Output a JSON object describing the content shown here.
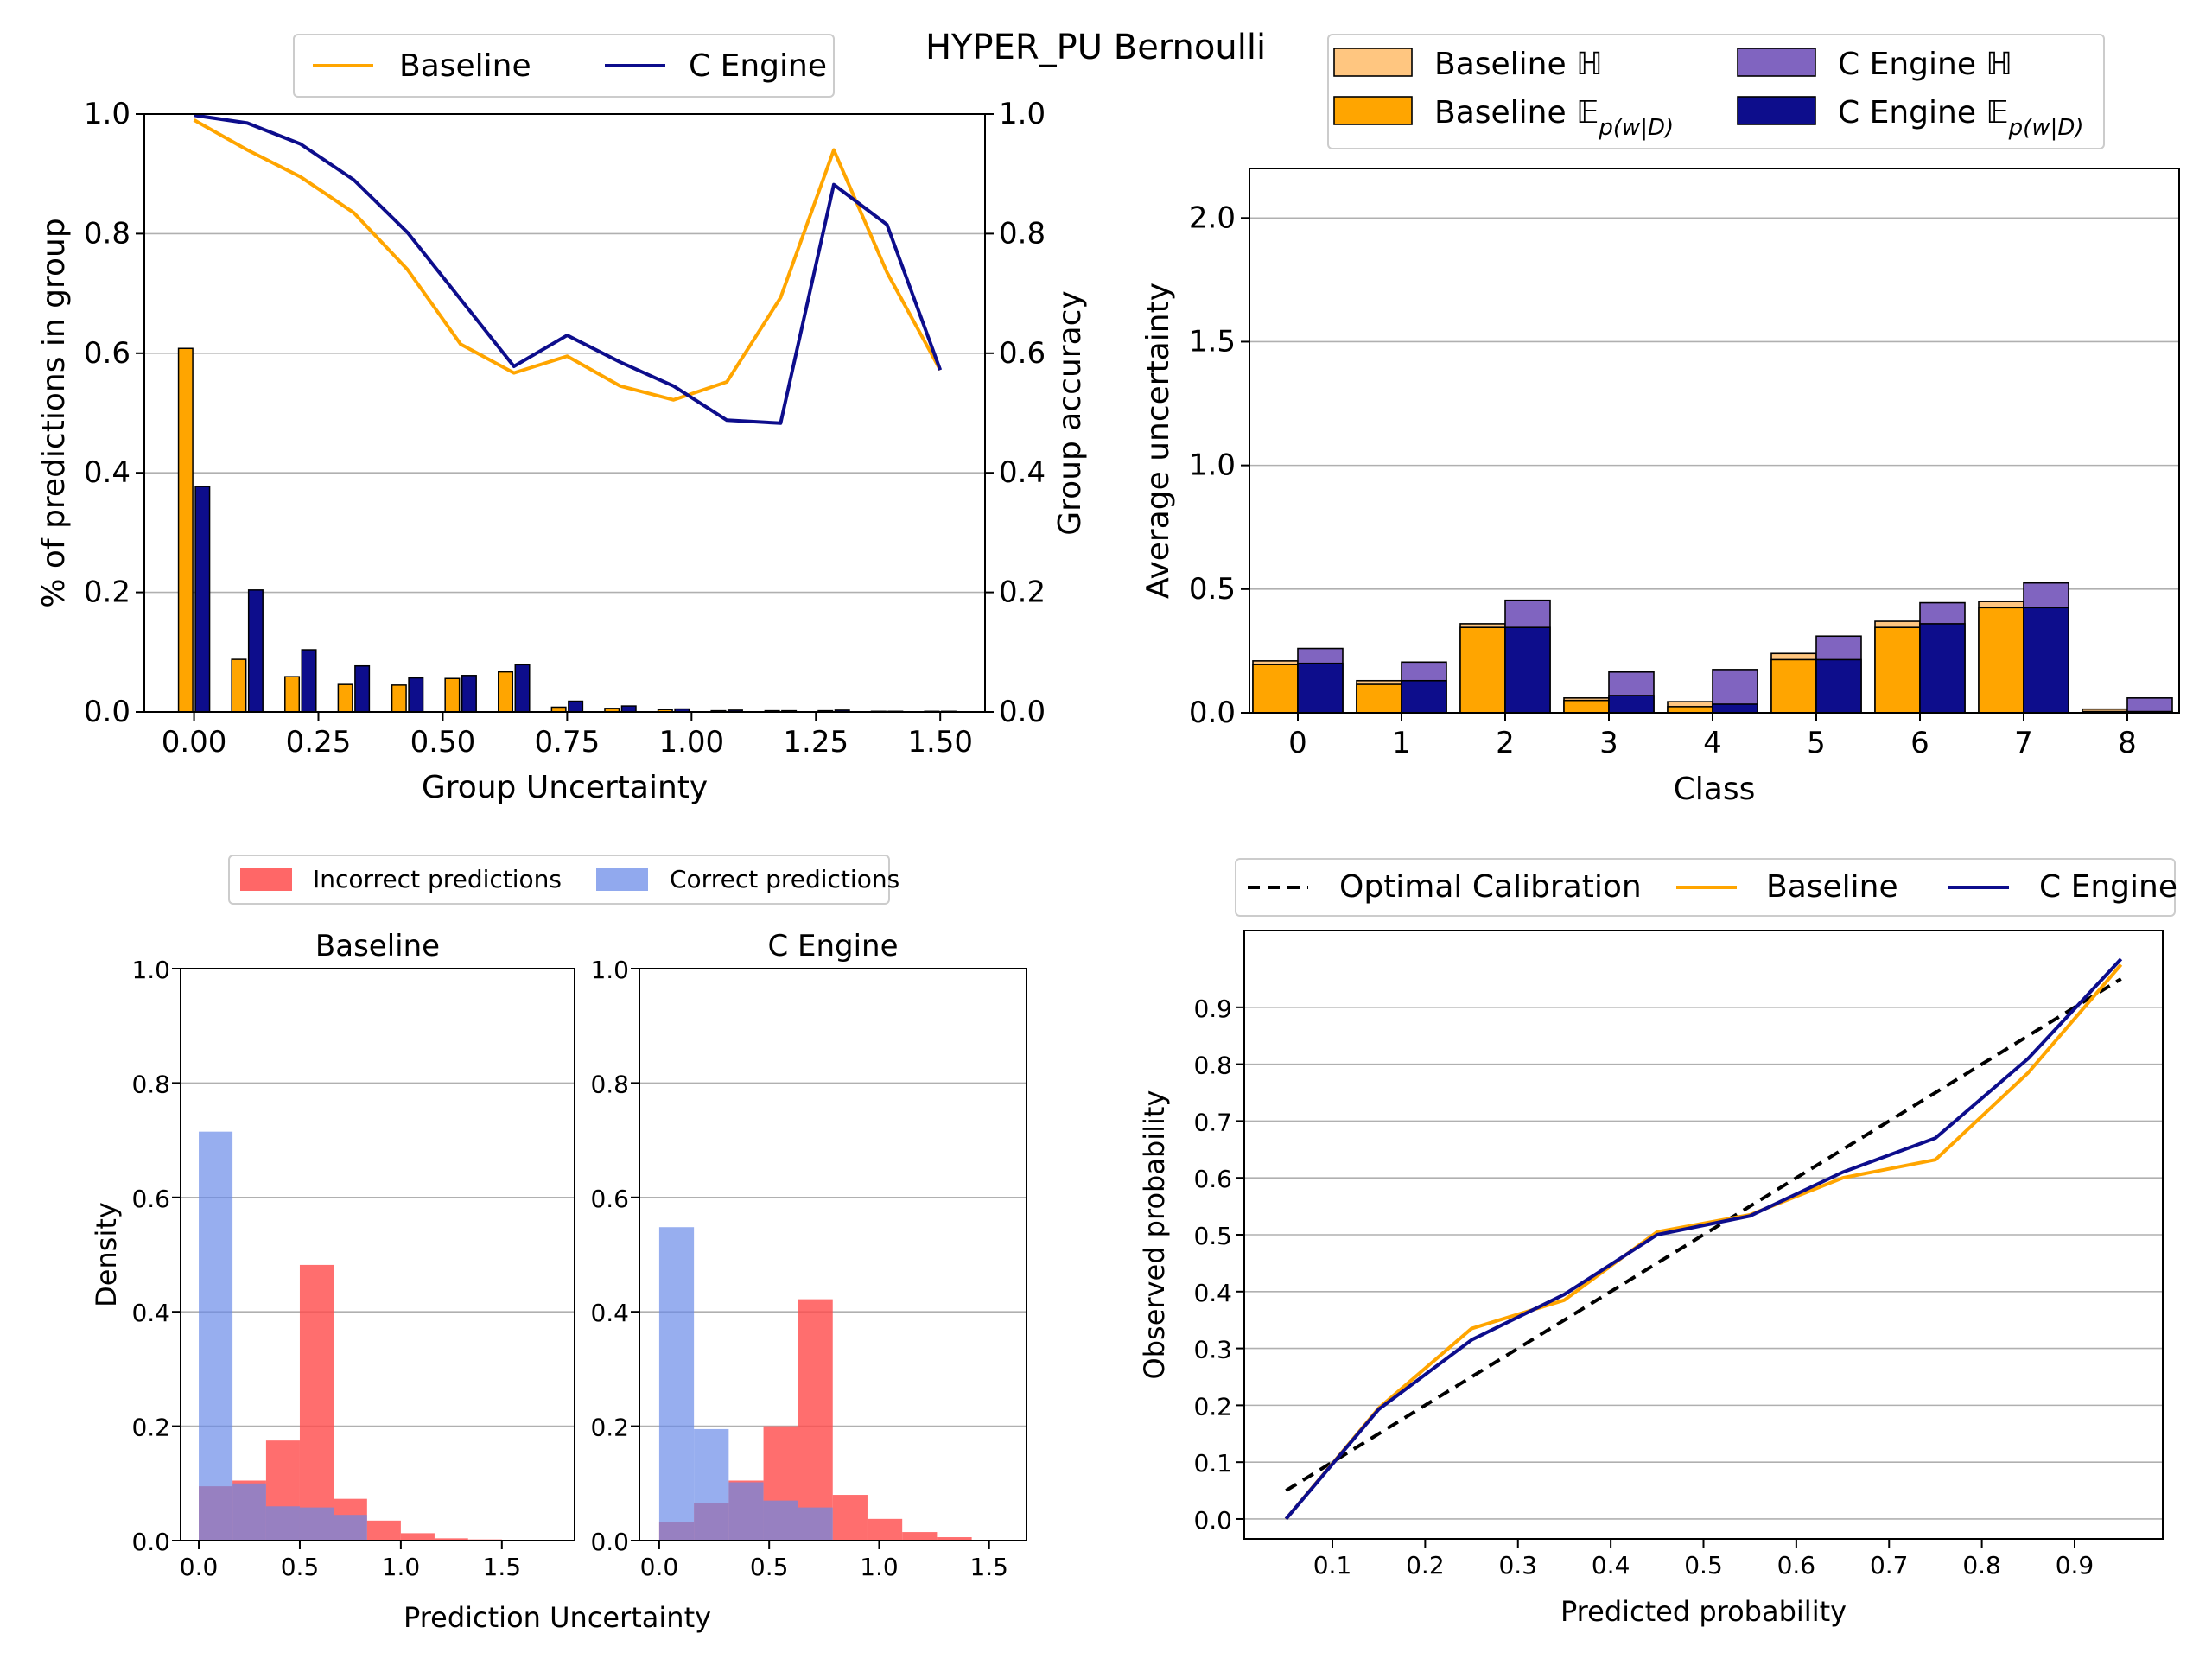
{
  "figure": {
    "title": "HYPER_PU Bernoulli"
  },
  "colors": {
    "baseline": "#ffa500",
    "c_engine": "#0d0d8c",
    "baseline_light": "#ffc680",
    "c_engine_light": "#8064c0",
    "incorrect": "#ff4c4c",
    "correct": "#6688e8",
    "optimal": "#000000",
    "grid": "#b0b0b0"
  },
  "chart_data": [
    {
      "id": "group-uncertainty",
      "type": "bar+line",
      "xlabel": "Group Uncertainty",
      "ylabel": "% of predictions in group",
      "ylabel_right": "Group accuracy",
      "xlim": [
        -0.1,
        1.59
      ],
      "ylim": [
        0,
        1.0
      ],
      "ylim_right": [
        0,
        1.0
      ],
      "xticks": [
        "0.00",
        "0.25",
        "0.50",
        "0.75",
        "1.00",
        "1.25",
        "1.50"
      ],
      "yticks": [
        "0.0",
        "0.2",
        "0.4",
        "0.6",
        "0.8",
        "1.0"
      ],
      "yticks_right": [
        "0.0",
        "0.2",
        "0.4",
        "0.6",
        "0.8",
        "1.0"
      ],
      "legend": {
        "position": "top-left",
        "entries": [
          "Baseline",
          "C Engine"
        ]
      },
      "x": [
        0.0,
        0.107,
        0.214,
        0.321,
        0.429,
        0.536,
        0.643,
        0.75,
        0.857,
        0.964,
        1.071,
        1.179,
        1.286,
        1.393,
        1.5
      ],
      "series": [
        {
          "name": "Baseline",
          "kind": "bar",
          "axis": "left",
          "values": [
            0.608,
            0.088,
            0.059,
            0.046,
            0.045,
            0.056,
            0.067,
            0.008,
            0.006,
            0.004,
            0.002,
            0.002,
            0.002,
            0.001,
            0.001
          ]
        },
        {
          "name": "C Engine",
          "kind": "bar",
          "axis": "left",
          "values": [
            0.377,
            0.204,
            0.104,
            0.077,
            0.057,
            0.061,
            0.079,
            0.018,
            0.01,
            0.005,
            0.003,
            0.002,
            0.003,
            0.001,
            0.001
          ]
        },
        {
          "name": "Baseline",
          "kind": "line",
          "axis": "right",
          "values": [
            0.99,
            0.94,
            0.895,
            0.835,
            0.74,
            0.615,
            0.567,
            0.595,
            0.545,
            0.522,
            0.552,
            0.693,
            0.94,
            0.735,
            0.572
          ]
        },
        {
          "name": "C Engine",
          "kind": "line",
          "axis": "right",
          "values": [
            0.998,
            0.985,
            0.95,
            0.89,
            0.802,
            0.69,
            0.578,
            0.63,
            0.585,
            0.545,
            0.488,
            0.483,
            0.882,
            0.815,
            0.572
          ]
        }
      ]
    },
    {
      "id": "class-uncertainty",
      "type": "bar",
      "xlabel": "Class",
      "ylabel": "Average uncertainty",
      "ylim": [
        0,
        2.2
      ],
      "yticks": [
        "0.0",
        "0.5",
        "1.0",
        "1.5",
        "2.0"
      ],
      "categories": [
        "0",
        "1",
        "2",
        "3",
        "4",
        "5",
        "6",
        "7",
        "8"
      ],
      "legend": {
        "position": "top-right",
        "entries": [
          "Baseline ℍ",
          "C Engine ℍ",
          "Baseline 𝔼",
          "C Engine 𝔼"
        ],
        "subscript": "p(w|D)"
      },
      "series": [
        {
          "name": "Baseline ℍ",
          "values": [
            0.21,
            0.13,
            0.36,
            0.06,
            0.045,
            0.24,
            0.37,
            0.45,
            0.015
          ]
        },
        {
          "name": "Baseline 𝔼",
          "values": [
            0.195,
            0.115,
            0.345,
            0.05,
            0.025,
            0.215,
            0.345,
            0.425,
            0.005
          ]
        },
        {
          "name": "C Engine ℍ",
          "values": [
            0.26,
            0.205,
            0.455,
            0.165,
            0.175,
            0.31,
            0.445,
            0.525,
            0.06
          ]
        },
        {
          "name": "C Engine 𝔼",
          "values": [
            0.2,
            0.13,
            0.345,
            0.07,
            0.035,
            0.215,
            0.36,
            0.425,
            0.005
          ]
        }
      ]
    },
    {
      "id": "hist-baseline",
      "type": "histogram",
      "title": "Baseline",
      "ylabel": "Density",
      "xlim": [
        -0.09,
        1.86
      ],
      "ylim": [
        0,
        1.0
      ],
      "xticks": [
        "0.0",
        "0.5",
        "1.0",
        "1.5"
      ],
      "yticks": [
        "0.0",
        "0.2",
        "0.4",
        "0.6",
        "0.8",
        "1.0"
      ],
      "bin_edges": [
        0.0,
        0.167,
        0.333,
        0.5,
        0.667,
        0.833,
        1.0,
        1.167,
        1.333,
        1.5,
        1.667,
        1.833
      ],
      "series": [
        {
          "name": "Incorrect predictions",
          "values": [
            0.095,
            0.105,
            0.175,
            0.482,
            0.073,
            0.035,
            0.013,
            0.004,
            0.002,
            0.001,
            0.0
          ]
        },
        {
          "name": "Correct predictions",
          "values": [
            0.715,
            0.1,
            0.06,
            0.058,
            0.045,
            0.0,
            0.0,
            0.0,
            0.0,
            0.0,
            0.0
          ]
        }
      ]
    },
    {
      "id": "hist-c-engine",
      "type": "histogram",
      "title": "C Engine",
      "xlabel": "Prediction Uncertainty",
      "xlim": [
        -0.09,
        1.67
      ],
      "ylim": [
        0,
        1.0
      ],
      "xticks": [
        "0.0",
        "0.5",
        "1.0",
        "1.5"
      ],
      "yticks": [
        "0.0",
        "0.2",
        "0.4",
        "0.6",
        "0.8",
        "1.0"
      ],
      "bin_edges": [
        0.0,
        0.158,
        0.316,
        0.474,
        0.632,
        0.789,
        0.947,
        1.105,
        1.263,
        1.421,
        1.579
      ],
      "legend": {
        "position": "top",
        "entries": [
          "Incorrect predictions",
          "Correct predictions"
        ]
      },
      "series": [
        {
          "name": "Incorrect predictions",
          "values": [
            0.032,
            0.065,
            0.105,
            0.2,
            0.422,
            0.08,
            0.038,
            0.015,
            0.006,
            0.0
          ]
        },
        {
          "name": "Correct predictions",
          "values": [
            0.548,
            0.195,
            0.102,
            0.07,
            0.058,
            0.0,
            0.0,
            0.0,
            0.0,
            0.0
          ]
        }
      ]
    },
    {
      "id": "calibration",
      "type": "line",
      "xlabel": "Predicted probability",
      "ylabel": "Observed probability",
      "xlim": [
        0.005,
        0.995
      ],
      "ylim": [
        -0.035,
        1.035
      ],
      "xticks": [
        "0.1",
        "0.2",
        "0.3",
        "0.4",
        "0.5",
        "0.6",
        "0.7",
        "0.8",
        "0.9"
      ],
      "yticks": [
        "0.0",
        "0.1",
        "0.2",
        "0.3",
        "0.4",
        "0.5",
        "0.6",
        "0.7",
        "0.8",
        "0.9"
      ],
      "legend": {
        "position": "top",
        "entries": [
          "Optimal Calibration",
          "Baseline",
          "C Engine"
        ]
      },
      "x": [
        0.05,
        0.15,
        0.25,
        0.35,
        0.45,
        0.55,
        0.65,
        0.75,
        0.85,
        0.95
      ],
      "series": [
        {
          "name": "Optimal Calibration",
          "x": [
            0.05,
            0.95
          ],
          "values": [
            0.05,
            0.95
          ]
        },
        {
          "name": "Baseline",
          "values": [
            0.0,
            0.195,
            0.335,
            0.385,
            0.505,
            0.535,
            0.6,
            0.632,
            0.785,
            0.975
          ]
        },
        {
          "name": "C Engine",
          "values": [
            0.0,
            0.193,
            0.315,
            0.395,
            0.5,
            0.533,
            0.61,
            0.67,
            0.81,
            0.985
          ]
        }
      ]
    }
  ]
}
